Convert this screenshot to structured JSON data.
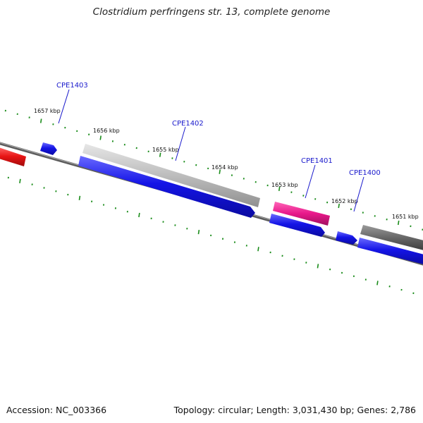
{
  "title": "Clostridium perfringens str. 13, complete genome",
  "footer": {
    "accession": "Accession: NC_003366",
    "summary": "Topology: circular; Length: 3,031,430 bp; Genes: 2,786"
  },
  "colors": {
    "background": "#ffffff",
    "backbone": "#7f7f7f",
    "tick": "#1a8c1a",
    "cds_blue": "#1414e6",
    "gene_gray_light": "#b9b9b9",
    "gene_gray_dark": "#666666",
    "gene_pink": "#e8188a",
    "gene_red": "#e81414",
    "label": "#1a1acc"
  },
  "scale_labels": [
    "1657 kbp",
    "1656 kbp",
    "1655 kbp",
    "1654 kbp",
    "1653 kbp",
    "1652 kbp",
    "1651 kbp"
  ],
  "gene_labels": [
    "CPE1403",
    "CPE1402",
    "CPE1401",
    "CPE1400"
  ]
}
